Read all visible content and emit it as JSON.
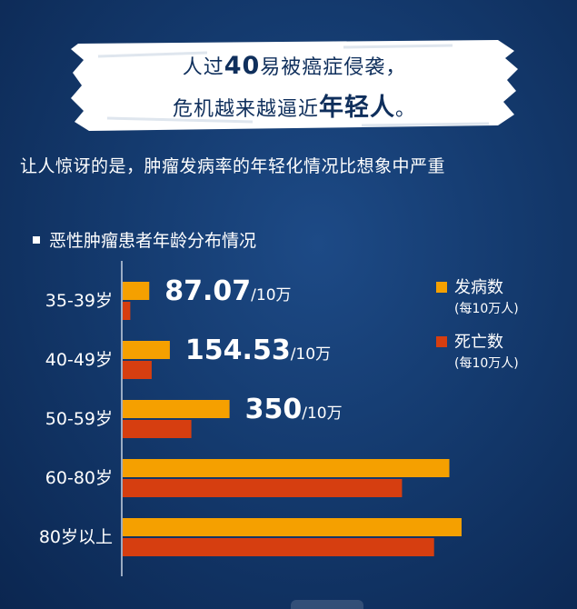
{
  "banner": {
    "line1_pre": "人过",
    "line1_bold": "40",
    "line1_post": "易被癌症侵袭，",
    "line2_pre": "危机越来越逼近",
    "line2_bold": "年轻人",
    "line2_post": "。"
  },
  "subtitle": "让人惊讶的是，肿瘤发病率的年轻化情况比想象中严重",
  "chart_data": {
    "type": "bar",
    "orientation": "horizontal",
    "title": "恶性肿瘤患者年龄分布情况",
    "categories": [
      "35-39岁",
      "40-49岁",
      "50-59岁",
      "60-80岁",
      "80岁以上"
    ],
    "series": [
      {
        "name": "发病数",
        "name_sub": "(每10万人)",
        "color": "#f5a000",
        "values": [
          87.07,
          154.53,
          350,
          1070,
          1110
        ]
      },
      {
        "name": "死亡数",
        "name_sub": "(每10万人)",
        "color": "#d63e10",
        "values": [
          25,
          95,
          225,
          915,
          1020
        ]
      }
    ],
    "data_labels": [
      {
        "index": 0,
        "value": "87.07",
        "unit": "/10万"
      },
      {
        "index": 1,
        "value": "154.53",
        "unit": "/10万"
      },
      {
        "index": 2,
        "value": "350",
        "unit": "/10万"
      }
    ],
    "xlim": [
      0,
      1250
    ],
    "legend_position": "top-right",
    "grid": false
  }
}
